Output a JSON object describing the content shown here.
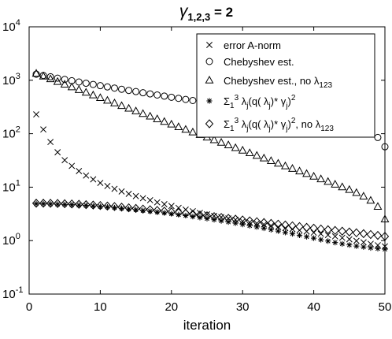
{
  "chart_data": {
    "type": "scatter",
    "title": {
      "main": "γ",
      "sub": "1,2,3",
      "rest": " = 2"
    },
    "xlabel": "iteration",
    "ylabel": "",
    "xlim": [
      0,
      50
    ],
    "ylim": [
      0.1,
      10000
    ],
    "yscale": "log",
    "grid": false,
    "legend_position": "top-right",
    "x_ticks": [
      0,
      10,
      20,
      30,
      40,
      50
    ],
    "y_ticks": [
      {
        "value": 0.1,
        "base": "10",
        "exp": "-1"
      },
      {
        "value": 1,
        "base": "10",
        "exp": "0"
      },
      {
        "value": 10,
        "base": "10",
        "exp": "1"
      },
      {
        "value": 100,
        "base": "10",
        "exp": "2"
      },
      {
        "value": 1000,
        "base": "10",
        "exp": "3"
      },
      {
        "value": 10000,
        "base": "10",
        "exp": "4"
      }
    ],
    "legend_entries": [
      {
        "marker": "x",
        "parts": [
          [
            "t",
            "error A-norm"
          ]
        ]
      },
      {
        "marker": "o",
        "parts": [
          [
            "t",
            "Chebyshev est."
          ]
        ]
      },
      {
        "marker": "triangle",
        "parts": [
          [
            "t",
            "Chebyshev est., no      λ"
          ],
          [
            "sub",
            "123"
          ]
        ]
      },
      {
        "marker": "star",
        "parts": [
          [
            "t",
            "Σ"
          ],
          [
            "sub",
            "1"
          ],
          [
            "sup",
            "3"
          ],
          [
            "t",
            " λ"
          ],
          [
            "sub",
            "j"
          ],
          [
            "t",
            "(q( λ"
          ],
          [
            "sub",
            "j"
          ],
          [
            "t",
            ")* γ"
          ],
          [
            "sub",
            "j"
          ],
          [
            "t",
            ")"
          ],
          [
            "sup",
            "2"
          ]
        ]
      },
      {
        "marker": "diamond",
        "parts": [
          [
            "t",
            "Σ"
          ],
          [
            "sub",
            "1"
          ],
          [
            "sup",
            "3"
          ],
          [
            "t",
            " λ"
          ],
          [
            "sub",
            "j"
          ],
          [
            "t",
            "(q( λ"
          ],
          [
            "sub",
            "j"
          ],
          [
            "t",
            ")* γ"
          ],
          [
            "sub",
            "j"
          ],
          [
            "t",
            ")"
          ],
          [
            "sup",
            "2"
          ],
          [
            "t",
            ", no  λ"
          ],
          [
            "sub",
            "123"
          ]
        ]
      }
    ],
    "series": [
      {
        "key": "error_a_norm",
        "marker": "x",
        "x": [
          1,
          2,
          3,
          4,
          5,
          6,
          7,
          8,
          9,
          10,
          11,
          12,
          13,
          14,
          15,
          16,
          17,
          18,
          19,
          20,
          21,
          22,
          23,
          24,
          25,
          26,
          27,
          28,
          29,
          30,
          31,
          32,
          33,
          34,
          35,
          36,
          37,
          38,
          39,
          40,
          41,
          42,
          43,
          44,
          45,
          46,
          47,
          48,
          49,
          50
        ],
        "y": [
          230,
          120,
          70,
          45,
          32,
          25,
          20,
          16.5,
          14,
          12,
          10.5,
          9.3,
          8.3,
          7.5,
          6.8,
          6.2,
          5.7,
          5.2,
          4.8,
          4.45,
          4.1,
          3.8,
          3.55,
          3.3,
          3.1,
          2.9,
          2.75,
          2.6,
          2.45,
          2.3,
          2.2,
          2.1,
          2,
          1.9,
          1.8,
          1.72,
          1.64,
          1.56,
          1.48,
          1.41,
          1.34,
          1.27,
          1.2,
          1.13,
          1.06,
          0.99,
          0.93,
          0.87,
          0.82,
          0.78
        ]
      },
      {
        "key": "chebyshev_est",
        "marker": "o",
        "x": [
          1,
          2,
          3,
          4,
          5,
          6,
          7,
          8,
          9,
          10,
          11,
          12,
          13,
          14,
          15,
          16,
          17,
          18,
          19,
          20,
          21,
          22,
          23,
          24,
          25,
          26,
          27,
          28,
          29,
          30,
          31,
          32,
          33,
          34,
          35,
          36,
          37,
          38,
          39,
          40,
          41,
          42,
          43,
          44,
          45,
          46,
          47,
          48,
          49,
          50
        ],
        "y": [
          1300,
          1230,
          1160,
          1095,
          1035,
          980,
          928,
          880,
          835,
          792,
          752,
          714,
          679,
          645,
          614,
          584,
          556,
          530,
          505,
          481,
          459,
          438,
          418,
          399,
          381,
          364,
          348,
          333,
          318,
          304,
          291,
          279,
          267,
          256,
          245,
          235,
          225,
          215,
          206,
          197,
          188,
          179,
          169,
          159,
          148,
          136,
          122,
          106,
          85,
          57
        ]
      },
      {
        "key": "chebyshev_est_no_lambda123",
        "marker": "triangle",
        "x": [
          1,
          2,
          3,
          4,
          5,
          6,
          7,
          8,
          9,
          10,
          11,
          12,
          13,
          14,
          15,
          16,
          17,
          18,
          19,
          20,
          21,
          22,
          23,
          24,
          25,
          26,
          27,
          28,
          29,
          30,
          31,
          32,
          33,
          34,
          35,
          36,
          37,
          38,
          39,
          40,
          41,
          42,
          43,
          44,
          45,
          46,
          47,
          48,
          49,
          50
        ],
        "y": [
          1330,
          1180,
          1050,
          935,
          832,
          741,
          660,
          588,
          524,
          467,
          416,
          371,
          331,
          295,
          263,
          235,
          210,
          187,
          167,
          149,
          133,
          119,
          106,
          95,
          85,
          76,
          68,
          61,
          54,
          48.5,
          43.3,
          38.7,
          34.6,
          30.9,
          27.6,
          24.7,
          22.1,
          19.8,
          17.7,
          15.8,
          14.1,
          12.6,
          11.2,
          10,
          8.9,
          7.8,
          6.7,
          5.6,
          4.3,
          2.5
        ]
      },
      {
        "key": "sum_lambda_q_gamma_sq",
        "marker": "star",
        "x": [
          1,
          2,
          3,
          4,
          5,
          6,
          7,
          8,
          9,
          10,
          11,
          12,
          13,
          14,
          15,
          16,
          17,
          18,
          19,
          20,
          21,
          22,
          23,
          24,
          25,
          26,
          27,
          28,
          29,
          30,
          31,
          32,
          33,
          34,
          35,
          36,
          37,
          38,
          39,
          40,
          41,
          42,
          43,
          44,
          45,
          46,
          47,
          48,
          49,
          50
        ],
        "y": [
          4.9,
          4.9,
          4.85,
          4.8,
          4.75,
          4.7,
          4.62,
          4.55,
          4.45,
          4.35,
          4.25,
          4.13,
          4.02,
          3.9,
          3.78,
          3.66,
          3.54,
          3.42,
          3.3,
          3.18,
          3.06,
          2.94,
          2.82,
          2.7,
          2.58,
          2.46,
          2.34,
          2.23,
          2.12,
          2.01,
          1.9,
          1.8,
          1.7,
          1.6,
          1.51,
          1.42,
          1.34,
          1.26,
          1.18,
          1.11,
          1.04,
          0.98,
          0.92,
          0.87,
          0.83,
          0.79,
          0.76,
          0.73,
          0.71,
          0.69
        ]
      },
      {
        "key": "sum_lambda_q_gamma_sq_no_lambda123",
        "marker": "diamond",
        "x": [
          1,
          2,
          3,
          4,
          5,
          6,
          7,
          8,
          9,
          10,
          11,
          12,
          13,
          14,
          15,
          16,
          17,
          18,
          19,
          20,
          21,
          22,
          23,
          24,
          25,
          26,
          27,
          28,
          29,
          30,
          31,
          32,
          33,
          34,
          35,
          36,
          37,
          38,
          39,
          40,
          41,
          42,
          43,
          44,
          45,
          46,
          47,
          48,
          49,
          50
        ],
        "y": [
          5.0,
          5.0,
          4.98,
          4.95,
          4.9,
          4.85,
          4.78,
          4.7,
          4.62,
          4.53,
          4.43,
          4.33,
          4.22,
          4.11,
          4,
          3.89,
          3.78,
          3.67,
          3.56,
          3.45,
          3.34,
          3.23,
          3.12,
          3.01,
          2.91,
          2.81,
          2.71,
          2.61,
          2.52,
          2.43,
          2.34,
          2.26,
          2.18,
          2.1,
          2.03,
          1.96,
          1.89,
          1.83,
          1.77,
          1.71,
          1.65,
          1.6,
          1.55,
          1.5,
          1.45,
          1.4,
          1.35,
          1.3,
          1.25,
          1.2
        ]
      }
    ]
  }
}
